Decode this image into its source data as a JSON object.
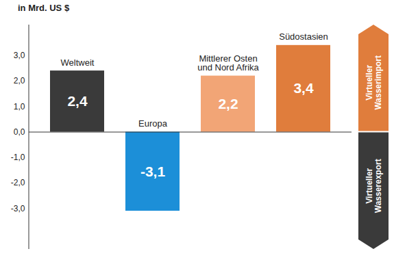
{
  "chart_data": {
    "type": "bar",
    "y_label": "in Mrd. US $",
    "categories": [
      "Weltweit",
      "Europa",
      "Mittlerer Osten und Nord Afrika",
      "Südostasien"
    ],
    "values": [
      2.4,
      -3.1,
      2.2,
      3.4
    ],
    "value_labels": [
      "2,4",
      "-3,1",
      "2,2",
      "3,4"
    ],
    "data_labels": true,
    "colors": [
      "#3a3a3a",
      "#1c8fd8",
      "#f2a576",
      "#e07d3c"
    ],
    "ylim": [
      -4.6,
      4.2
    ],
    "yticks": [
      {
        "value": -3,
        "label": "-3,0"
      },
      {
        "value": -2,
        "label": "-2,0"
      },
      {
        "value": -1,
        "label": "-1,0"
      },
      {
        "value": 0,
        "label": "0,0"
      },
      {
        "value": 1,
        "label": "1,0"
      },
      {
        "value": 2,
        "label": "2,0"
      },
      {
        "value": 3,
        "label": "3,0"
      }
    ],
    "grid": false,
    "annotations": [
      "Virtueller Wasserimport",
      "Virtueller Wasserexport"
    ]
  }
}
